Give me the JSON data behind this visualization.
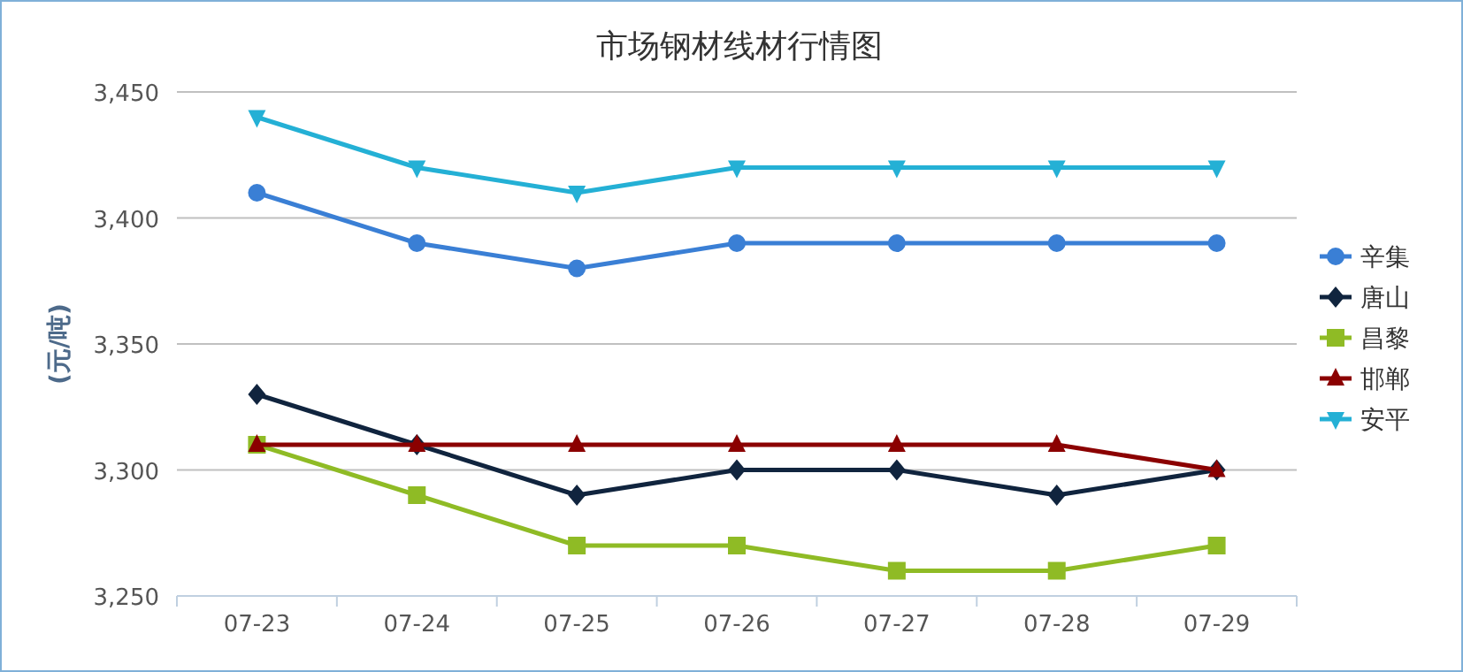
{
  "chart_data": {
    "type": "line",
    "title": "市场钢材线材行情图",
    "ylabel": "(元/吨)",
    "categories": [
      "07-23",
      "07-24",
      "07-25",
      "07-26",
      "07-27",
      "07-28",
      "07-29"
    ],
    "series": [
      {
        "name": "辛集",
        "color": "#3a7fd5",
        "marker": "circle",
        "values": [
          3410,
          3390,
          3380,
          3390,
          3390,
          3390,
          3390
        ]
      },
      {
        "name": "唐山",
        "color": "#10243e",
        "marker": "diamond",
        "values": [
          3330,
          3310,
          3290,
          3300,
          3300,
          3290,
          3300
        ]
      },
      {
        "name": "昌黎",
        "color": "#8fbb25",
        "marker": "square",
        "values": [
          3310,
          3290,
          3270,
          3270,
          3260,
          3260,
          3270
        ]
      },
      {
        "name": "邯郸",
        "color": "#8b0000",
        "marker": "triangle",
        "values": [
          3310,
          3310,
          3310,
          3310,
          3310,
          3310,
          3300
        ]
      },
      {
        "name": "安平",
        "color": "#24b0d5",
        "marker": "triangle-down",
        "values": [
          3440,
          3420,
          3410,
          3420,
          3420,
          3420,
          3420
        ]
      }
    ],
    "ylim": [
      3250,
      3450
    ],
    "yticks": [
      {
        "value": 3250,
        "label": "3,250"
      },
      {
        "value": 3300,
        "label": "3,300"
      },
      {
        "value": 3350,
        "label": "3,350"
      },
      {
        "value": 3400,
        "label": "3,400"
      },
      {
        "value": 3450,
        "label": "3,450"
      }
    ],
    "grid": "y",
    "legend": "right",
    "line_style": "solid"
  }
}
